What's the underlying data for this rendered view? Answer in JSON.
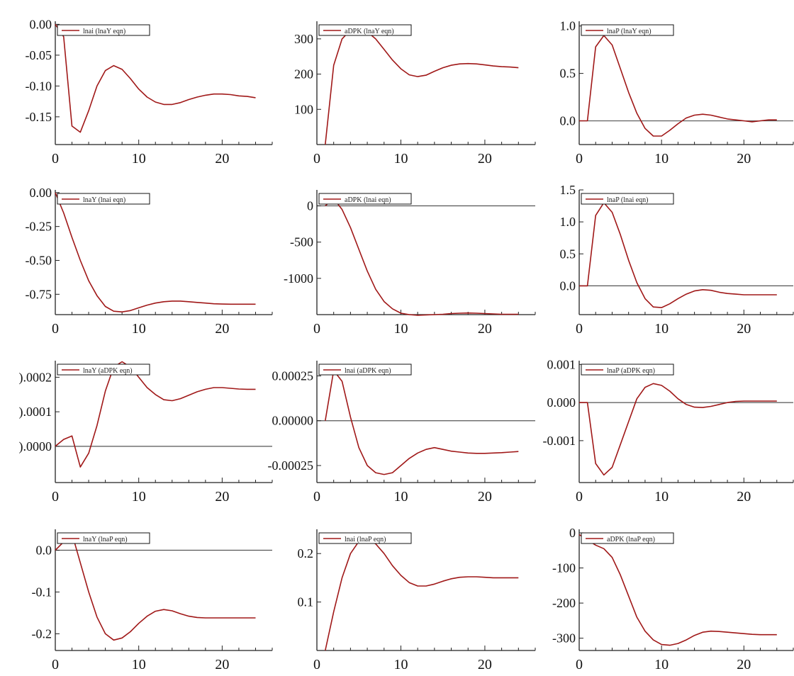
{
  "figure": {
    "background": "#ffffff",
    "line_color": "#a01818",
    "axis_color": "#222222",
    "zero_line_color": "#555555"
  },
  "chart_data": [
    {
      "type": "line",
      "legend": "lnai (lnaY eqn)",
      "x": [
        0,
        1,
        2,
        3,
        4,
        5,
        6,
        7,
        8,
        9,
        10,
        11,
        12,
        13,
        14,
        15,
        16,
        17,
        18,
        19,
        20,
        21,
        22,
        23,
        24
      ],
      "series": [
        {
          "name": "lnai (lnaY eqn)",
          "values": [
            0,
            -0.02,
            -0.165,
            -0.175,
            -0.14,
            -0.1,
            -0.075,
            -0.067,
            -0.073,
            -0.088,
            -0.105,
            -0.118,
            -0.126,
            -0.13,
            -0.13,
            -0.127,
            -0.122,
            -0.118,
            -0.115,
            -0.113,
            -0.113,
            -0.114,
            -0.116,
            -0.117,
            -0.119
          ]
        }
      ],
      "xlim": [
        0,
        26
      ],
      "ylim": [
        -0.195,
        0.005
      ],
      "xticks": [
        0,
        10,
        20
      ],
      "xtick_labels": [
        "0",
        "10",
        "20"
      ],
      "yticks": [
        0,
        -0.05,
        -0.1,
        -0.15
      ],
      "ytick_labels": [
        "0.00",
        "-0.05",
        "-0.10",
        "-0.15"
      ],
      "zero_line": false
    },
    {
      "type": "line",
      "legend": "aDPK (lnaY eqn)",
      "x": [
        1,
        2,
        3,
        4,
        5,
        6,
        7,
        8,
        9,
        10,
        11,
        12,
        13,
        14,
        15,
        16,
        17,
        18,
        19,
        20,
        21,
        22,
        23,
        24
      ],
      "series": [
        {
          "name": "aDPK (lnaY eqn)",
          "values": [
            0,
            225,
            300,
            325,
            330,
            320,
            300,
            270,
            240,
            215,
            198,
            193,
            197,
            208,
            218,
            225,
            229,
            230,
            229,
            226,
            223,
            221,
            220,
            218
          ]
        }
      ],
      "xlim": [
        0,
        26
      ],
      "ylim": [
        0,
        350
      ],
      "xticks": [
        0,
        10,
        20
      ],
      "xtick_labels": [
        "0",
        "10",
        "20"
      ],
      "yticks": [
        300,
        200,
        100
      ],
      "ytick_labels": [
        "300",
        "200",
        "100"
      ],
      "zero_line": false
    },
    {
      "type": "line",
      "legend": "lnaP (lnaY eqn)",
      "x": [
        0,
        1,
        2,
        3,
        4,
        5,
        6,
        7,
        8,
        9,
        10,
        11,
        12,
        13,
        14,
        15,
        16,
        17,
        18,
        19,
        20,
        21,
        22,
        23,
        24
      ],
      "series": [
        {
          "name": "lnaP (lnaY eqn)",
          "values": [
            0,
            0,
            0.78,
            0.9,
            0.8,
            0.55,
            0.3,
            0.08,
            -0.08,
            -0.16,
            -0.16,
            -0.1,
            -0.03,
            0.03,
            0.06,
            0.07,
            0.06,
            0.04,
            0.02,
            0.01,
            0,
            -0.01,
            0,
            0.01,
            0.01
          ]
        }
      ],
      "xlim": [
        0,
        26
      ],
      "ylim": [
        -0.25,
        1.05
      ],
      "xticks": [
        0,
        10,
        20
      ],
      "xtick_labels": [
        "0",
        "10",
        "20"
      ],
      "yticks": [
        1.0,
        0.5,
        0.0
      ],
      "ytick_labels": [
        "1.0",
        "0.5",
        "0.0"
      ],
      "zero_line": true
    },
    {
      "type": "line",
      "legend": "lnaY (lnai eqn)",
      "x": [
        0,
        1,
        2,
        3,
        4,
        5,
        6,
        7,
        8,
        9,
        10,
        11,
        12,
        13,
        14,
        15,
        16,
        17,
        18,
        19,
        20,
        21,
        22,
        23,
        24
      ],
      "series": [
        {
          "name": "lnaY (lnai eqn)",
          "values": [
            0,
            -0.15,
            -0.33,
            -0.5,
            -0.65,
            -0.76,
            -0.84,
            -0.875,
            -0.88,
            -0.87,
            -0.85,
            -0.83,
            -0.815,
            -0.805,
            -0.8,
            -0.8,
            -0.805,
            -0.81,
            -0.815,
            -0.82,
            -0.822,
            -0.823,
            -0.823,
            -0.823,
            -0.823
          ]
        }
      ],
      "xlim": [
        0,
        26
      ],
      "ylim": [
        -0.9,
        0.02
      ],
      "xticks": [
        0,
        10,
        20
      ],
      "xtick_labels": [
        "0",
        "10",
        "20"
      ],
      "yticks": [
        0,
        -0.25,
        -0.5,
        -0.75
      ],
      "ytick_labels": [
        "0.00",
        "-0.25",
        "-0.50",
        "-0.75"
      ],
      "zero_line": false
    },
    {
      "type": "line",
      "legend": "aDPK (lnai eqn)",
      "x": [
        1,
        2,
        3,
        4,
        5,
        6,
        7,
        8,
        9,
        10,
        11,
        12,
        13,
        14,
        15,
        16,
        17,
        18,
        19,
        20,
        21,
        22,
        23,
        24
      ],
      "series": [
        {
          "name": "aDPK (lnai eqn)",
          "values": [
            0,
            100,
            -50,
            -300,
            -600,
            -900,
            -1150,
            -1320,
            -1420,
            -1480,
            -1500,
            -1510,
            -1505,
            -1500,
            -1495,
            -1485,
            -1480,
            -1478,
            -1480,
            -1485,
            -1490,
            -1495,
            -1495,
            -1495
          ]
        }
      ],
      "xlim": [
        0,
        26
      ],
      "ylim": [
        -1500,
        220
      ],
      "xticks": [
        0,
        10,
        20
      ],
      "xtick_labels": [
        "0",
        "10",
        "20"
      ],
      "yticks": [
        0,
        -500,
        -1000
      ],
      "ytick_labels": [
        "0",
        "-500",
        "-1000"
      ],
      "zero_line": true
    },
    {
      "type": "line",
      "legend": "lnaP (lnai eqn)",
      "x": [
        0,
        1,
        2,
        3,
        4,
        5,
        6,
        7,
        8,
        9,
        10,
        11,
        12,
        13,
        14,
        15,
        16,
        17,
        18,
        19,
        20,
        21,
        22,
        23,
        24
      ],
      "series": [
        {
          "name": "lnaP (lnai eqn)",
          "values": [
            0,
            0,
            1.1,
            1.3,
            1.15,
            0.8,
            0.4,
            0.05,
            -0.2,
            -0.33,
            -0.34,
            -0.28,
            -0.2,
            -0.13,
            -0.08,
            -0.06,
            -0.07,
            -0.1,
            -0.12,
            -0.13,
            -0.14,
            -0.14,
            -0.14,
            -0.14,
            -0.14
          ]
        }
      ],
      "xlim": [
        0,
        26
      ],
      "ylim": [
        -0.45,
        1.5
      ],
      "xticks": [
        0,
        10,
        20
      ],
      "xtick_labels": [
        "0",
        "10",
        "20"
      ],
      "yticks": [
        1.5,
        1.0,
        0.5,
        0.0
      ],
      "ytick_labels": [
        "1.5",
        "1.0",
        "0.5",
        "0.0"
      ],
      "zero_line": true
    },
    {
      "type": "line",
      "legend": "lnaY (aDPK eqn)",
      "x": [
        0,
        1,
        2,
        3,
        4,
        5,
        6,
        7,
        8,
        9,
        10,
        11,
        12,
        13,
        14,
        15,
        16,
        17,
        18,
        19,
        20,
        21,
        22,
        23,
        24
      ],
      "series": [
        {
          "name": "lnaY (aDPK eqn)",
          "values": [
            0,
            2e-05,
            3e-05,
            -6e-05,
            -2e-05,
            6e-05,
            0.00016,
            0.00023,
            0.000245,
            0.00023,
            0.0002,
            0.00017,
            0.00015,
            0.000135,
            0.000132,
            0.000138,
            0.000148,
            0.000158,
            0.000165,
            0.00017,
            0.00017,
            0.000168,
            0.000166,
            0.000165,
            0.000165
          ]
        }
      ],
      "xlim": [
        0,
        26
      ],
      "ylim": [
        -0.000105,
        0.000248
      ],
      "xticks": [
        0,
        10,
        20
      ],
      "xtick_labels": [
        "0",
        "10",
        "20"
      ],
      "yticks": [
        0.0002,
        0.0001,
        0.0
      ],
      "ytick_labels": [
        ").0002",
        ").0001",
        ").0000"
      ],
      "zero_line": true
    },
    {
      "type": "line",
      "legend": "lnai (aDPK eqn)",
      "x": [
        1,
        2,
        3,
        4,
        5,
        6,
        7,
        8,
        9,
        10,
        11,
        12,
        13,
        14,
        15,
        16,
        17,
        18,
        19,
        20,
        21,
        22,
        23,
        24
      ],
      "series": [
        {
          "name": "lnai (aDPK eqn)",
          "values": [
            0,
            0.00028,
            0.00022,
            2e-05,
            -0.00015,
            -0.00025,
            -0.00029,
            -0.0003,
            -0.00029,
            -0.00025,
            -0.00021,
            -0.00018,
            -0.00016,
            -0.00015,
            -0.00016,
            -0.00017,
            -0.000175,
            -0.00018,
            -0.000182,
            -0.000182,
            -0.00018,
            -0.000178,
            -0.000175,
            -0.000172
          ]
        }
      ],
      "xlim": [
        0,
        26
      ],
      "ylim": [
        -0.000345,
        0.000335
      ],
      "xticks": [
        0,
        10,
        20
      ],
      "xtick_labels": [
        "0",
        "10",
        "20"
      ],
      "yticks": [
        0.00025,
        0.0,
        -0.00025
      ],
      "ytick_labels": [
        "0.00025",
        "0.00000",
        "-0.00025"
      ],
      "zero_line": true
    },
    {
      "type": "line",
      "legend": "lnaP (aDPK eqn)",
      "x": [
        0,
        1,
        2,
        3,
        4,
        5,
        6,
        7,
        8,
        9,
        10,
        11,
        12,
        13,
        14,
        15,
        16,
        17,
        18,
        19,
        20,
        21,
        22,
        23,
        24
      ],
      "series": [
        {
          "name": "lnaP (aDPK eqn)",
          "values": [
            0,
            0,
            -0.0016,
            -0.0019,
            -0.0017,
            -0.0011,
            -0.0005,
            0.0001,
            0.0004,
            0.0005,
            0.00045,
            0.0003,
            0.0001,
            -5e-05,
            -0.00012,
            -0.00013,
            -0.0001,
            -5e-05,
            0,
            3e-05,
            4e-05,
            4e-05,
            4e-05,
            4e-05,
            4e-05
          ]
        }
      ],
      "xlim": [
        0,
        26
      ],
      "ylim": [
        -0.0021,
        0.0011
      ],
      "xticks": [
        0,
        10,
        20
      ],
      "xtick_labels": [
        "0",
        "10",
        "20"
      ],
      "yticks": [
        0.001,
        0.0,
        -0.001
      ],
      "ytick_labels": [
        "0.001",
        "0.000",
        "-0.001"
      ],
      "zero_line": true
    },
    {
      "type": "line",
      "legend": "lnaY (lnaP eqn)",
      "x": [
        0,
        1,
        2,
        3,
        4,
        5,
        6,
        7,
        8,
        9,
        10,
        11,
        12,
        13,
        14,
        15,
        16,
        17,
        18,
        19,
        20,
        21,
        22,
        23,
        24
      ],
      "series": [
        {
          "name": "lnaY (lnaP eqn)",
          "values": [
            0,
            0.02,
            0.04,
            -0.03,
            -0.1,
            -0.16,
            -0.2,
            -0.215,
            -0.21,
            -0.195,
            -0.175,
            -0.158,
            -0.146,
            -0.142,
            -0.145,
            -0.152,
            -0.158,
            -0.161,
            -0.162,
            -0.162,
            -0.162,
            -0.162,
            -0.162,
            -0.162,
            -0.162
          ]
        }
      ],
      "xlim": [
        0,
        26
      ],
      "ylim": [
        -0.24,
        0.05
      ],
      "xticks": [
        0,
        10,
        20
      ],
      "xtick_labels": [
        "0",
        "10",
        "20"
      ],
      "yticks": [
        0.0,
        -0.1,
        -0.2
      ],
      "ytick_labels": [
        "0.0",
        "-0.1",
        "-0.2"
      ],
      "zero_line": true
    },
    {
      "type": "line",
      "legend": "lnai (lnaP eqn)",
      "x": [
        1,
        2,
        3,
        4,
        5,
        6,
        7,
        8,
        9,
        10,
        11,
        12,
        13,
        14,
        15,
        16,
        17,
        18,
        19,
        20,
        21,
        22,
        23,
        24
      ],
      "series": [
        {
          "name": "lnai (lnaP eqn)",
          "values": [
            0,
            0.08,
            0.15,
            0.2,
            0.225,
            0.23,
            0.22,
            0.2,
            0.175,
            0.155,
            0.14,
            0.133,
            0.133,
            0.137,
            0.143,
            0.148,
            0.151,
            0.152,
            0.152,
            0.151,
            0.15,
            0.15,
            0.15,
            0.15
          ]
        }
      ],
      "xlim": [
        0,
        26
      ],
      "ylim": [
        0,
        0.25
      ],
      "xticks": [
        0,
        10,
        20
      ],
      "xtick_labels": [
        "0",
        "10",
        "20"
      ],
      "yticks": [
        0.2,
        0.1
      ],
      "ytick_labels": [
        "0.2",
        "0.1"
      ],
      "zero_line": false
    },
    {
      "type": "line",
      "legend": "aDPK (lnaP eqn)",
      "x": [
        0,
        1,
        2,
        3,
        4,
        5,
        6,
        7,
        8,
        9,
        10,
        11,
        12,
        13,
        14,
        15,
        16,
        17,
        18,
        19,
        20,
        21,
        22,
        23,
        24
      ],
      "series": [
        {
          "name": "aDPK (lnaP eqn)",
          "values": [
            -5,
            -20,
            -35,
            -45,
            -70,
            -120,
            -180,
            -240,
            -280,
            -305,
            -318,
            -320,
            -315,
            -305,
            -292,
            -283,
            -280,
            -281,
            -283,
            -285,
            -287,
            -289,
            -290,
            -290,
            -290
          ]
        }
      ],
      "xlim": [
        0,
        26
      ],
      "ylim": [
        -335,
        10
      ],
      "xticks": [
        0,
        10,
        20
      ],
      "xtick_labels": [
        "0",
        "10",
        "20"
      ],
      "yticks": [
        0,
        -100,
        -200,
        -300
      ],
      "ytick_labels": [
        "0",
        "-100",
        "-200",
        "-300"
      ],
      "zero_line": false
    }
  ]
}
